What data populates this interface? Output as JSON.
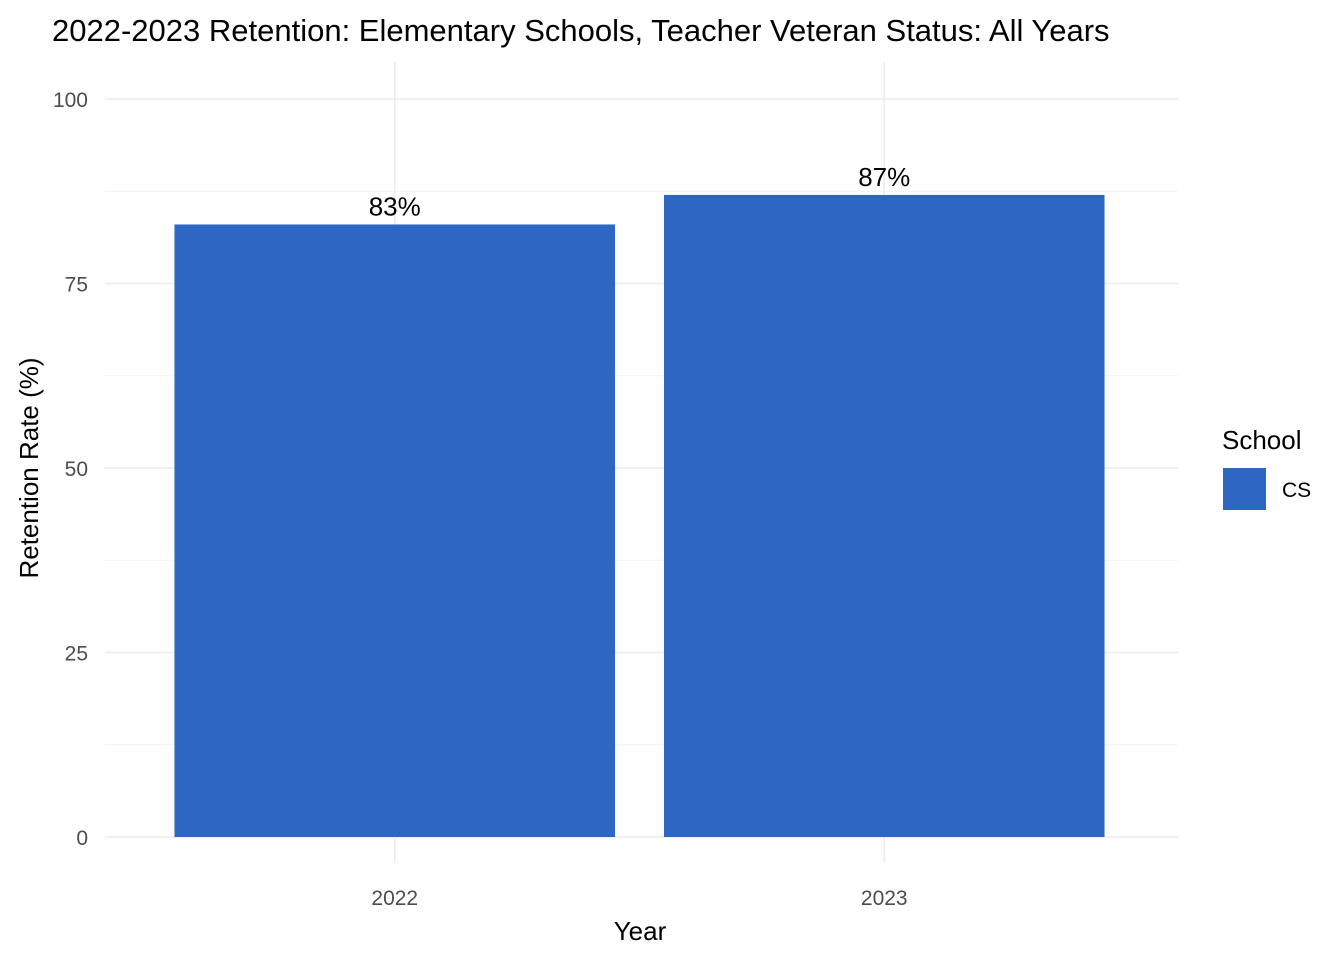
{
  "chart_data": {
    "type": "bar",
    "title": "2022-2023 Retention: Elementary Schools, Teacher Veteran Status: All Years",
    "xlabel": "Year",
    "ylabel": "Retention Rate (%)",
    "categories": [
      "2022",
      "2023"
    ],
    "series": [
      {
        "name": "CS",
        "values": [
          83,
          87
        ],
        "labels": [
          "83%",
          "87%"
        ],
        "color": "#2e67c3"
      }
    ],
    "ylim": [
      0,
      100
    ],
    "yticks": [
      "0",
      "25",
      "50",
      "75",
      "100"
    ],
    "grid": true,
    "legend": {
      "title": "School",
      "position": "right",
      "entries": [
        "CS"
      ]
    }
  }
}
